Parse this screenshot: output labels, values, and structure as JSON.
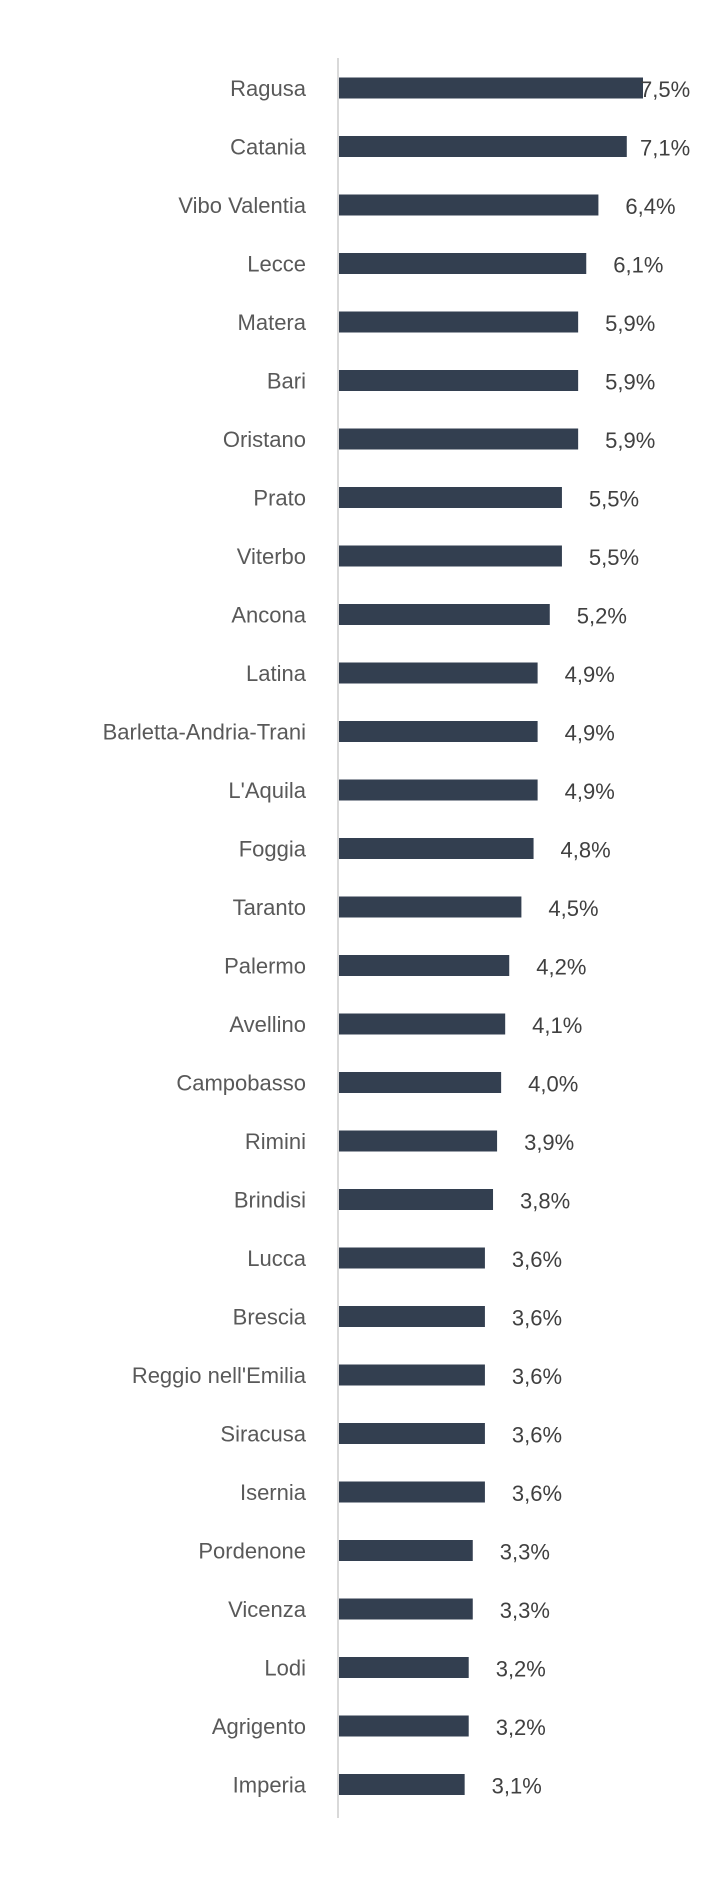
{
  "chart_data": {
    "type": "bar",
    "orientation": "horizontal",
    "title": "",
    "xlabel": "",
    "ylabel": "",
    "categories": [
      "Ragusa",
      "Catania",
      "Vibo Valentia",
      "Lecce",
      "Matera",
      "Bari",
      "Oristano",
      "Prato",
      "Viterbo",
      "Ancona",
      "Latina",
      "Barletta-Andria-Trani",
      "L'Aquila",
      "Foggia",
      "Taranto",
      "Palermo",
      "Avellino",
      "Campobasso",
      "Rimini",
      "Brindisi",
      "Lucca",
      "Brescia",
      "Reggio nell'Emilia",
      "Siracusa",
      "Isernia",
      "Pordenone",
      "Vicenza",
      "Lodi",
      "Agrigento",
      "Imperia"
    ],
    "values": [
      7.5,
      7.1,
      6.4,
      6.1,
      5.9,
      5.9,
      5.9,
      5.5,
      5.5,
      5.2,
      4.9,
      4.9,
      4.9,
      4.8,
      4.5,
      4.2,
      4.1,
      4.0,
      3.9,
      3.8,
      3.6,
      3.6,
      3.6,
      3.6,
      3.6,
      3.3,
      3.3,
      3.2,
      3.2,
      3.1
    ],
    "data_labels": [
      "7,5%",
      "7,1%",
      "6,4%",
      "6,1%",
      "5,9%",
      "5,9%",
      "5,9%",
      "5,5%",
      "5,5%",
      "5,2%",
      "4,9%",
      "4,9%",
      "4,9%",
      "4,8%",
      "4,5%",
      "4,2%",
      "4,1%",
      "4,0%",
      "3,9%",
      "3,8%",
      "3,6%",
      "3,6%",
      "3,6%",
      "3,6%",
      "3,6%",
      "3,3%",
      "3,3%",
      "3,2%",
      "3,2%",
      "3,1%"
    ],
    "unit": "%",
    "xlim": [
      0,
      7.5
    ],
    "grid": false,
    "legend": "none",
    "colors": {
      "bar": "#333f50",
      "axis": "#d9d9d9",
      "category_text": "#595959",
      "value_text": "#404040"
    }
  }
}
